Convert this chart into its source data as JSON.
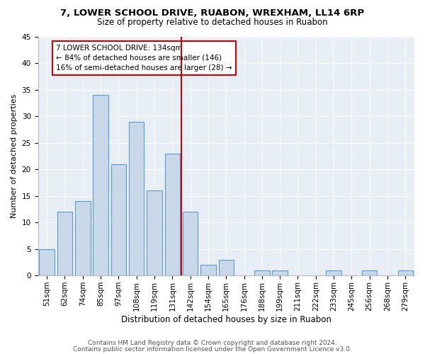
{
  "title1": "7, LOWER SCHOOL DRIVE, RUABON, WREXHAM, LL14 6RP",
  "title2": "Size of property relative to detached houses in Ruabon",
  "xlabel": "Distribution of detached houses by size in Ruabon",
  "ylabel": "Number of detached properties",
  "bar_labels": [
    "51sqm",
    "62sqm",
    "74sqm",
    "85sqm",
    "97sqm",
    "108sqm",
    "119sqm",
    "131sqm",
    "142sqm",
    "154sqm",
    "165sqm",
    "176sqm",
    "188sqm",
    "199sqm",
    "211sqm",
    "222sqm",
    "233sqm",
    "245sqm",
    "256sqm",
    "268sqm",
    "279sqm"
  ],
  "bar_values": [
    5,
    12,
    14,
    34,
    21,
    29,
    16,
    23,
    12,
    2,
    3,
    0,
    1,
    1,
    0,
    0,
    1,
    0,
    1,
    0,
    1
  ],
  "bar_color": "#c8d8e8",
  "bar_edge_color": "#5b9bd5",
  "vline_x": 7.5,
  "vline_color": "#cc0000",
  "annotation_line1": "7 LOWER SCHOOL DRIVE: 134sqm",
  "annotation_line2": "← 84% of detached houses are smaller (146)",
  "annotation_line3": "16% of semi-detached houses are larger (28) →",
  "annotation_box_color": "#cc0000",
  "ylim": [
    0,
    45
  ],
  "yticks": [
    0,
    5,
    10,
    15,
    20,
    25,
    30,
    35,
    40,
    45
  ],
  "bg_color": "#e8eef5",
  "footer1": "Contains HM Land Registry data © Crown copyright and database right 2024.",
  "footer2": "Contains public sector information licensed under the Open Government Licence v3.0.",
  "title1_fontsize": 9.5,
  "title2_fontsize": 8.5,
  "xlabel_fontsize": 8.5,
  "ylabel_fontsize": 8,
  "tick_fontsize": 7.5,
  "annotation_fontsize": 7.5,
  "footer_fontsize": 6.5
}
